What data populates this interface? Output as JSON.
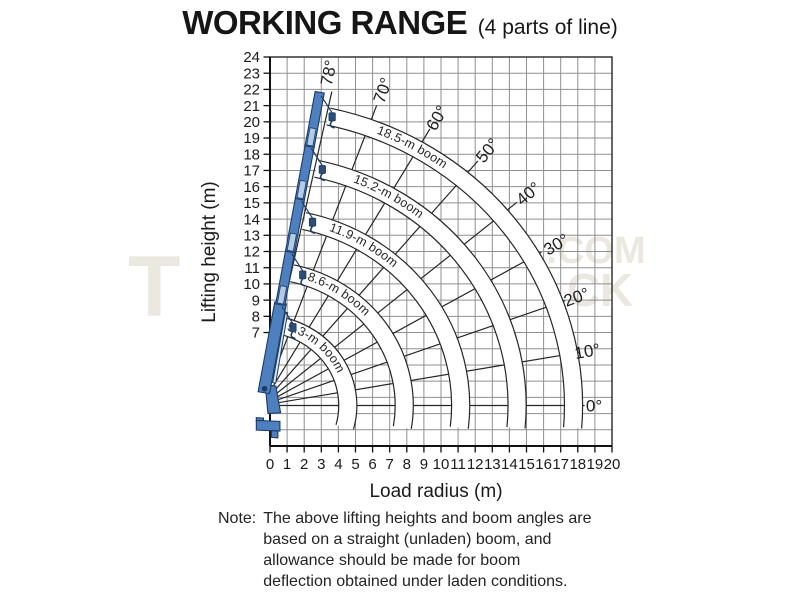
{
  "header": {
    "title": "WORKING RANGE",
    "suffix": "(4 parts of line)"
  },
  "chart_data": {
    "type": "line",
    "title": "WORKING RANGE (4 parts of line)",
    "xlabel": "Load radius (m)",
    "ylabel": "Lifting height (m)",
    "xlim": [
      0,
      20
    ],
    "ylim": [
      0,
      24
    ],
    "grid": true,
    "x_ticks": [
      0,
      1,
      2,
      3,
      4,
      5,
      6,
      7,
      8,
      9,
      10,
      11,
      12,
      13,
      14,
      15,
      16,
      17,
      18,
      19,
      20
    ],
    "y_ticks": [
      24,
      23,
      22,
      21,
      20,
      19,
      18,
      17,
      16,
      15,
      14,
      13,
      12,
      11,
      10,
      9,
      8,
      7
    ],
    "boom_pivot_m": {
      "x": -0.5,
      "y": 2.5
    },
    "boom_angles_deg": [
      0,
      10,
      20,
      30,
      40,
      50,
      60,
      70,
      78
    ],
    "angle_labels": [
      "0°",
      "10°",
      "20°",
      "30°",
      "40°",
      "50°",
      "60°",
      "70°",
      "78°"
    ],
    "boom_lengths_m": [
      5.3,
      8.6,
      11.9,
      15.2,
      18.5
    ],
    "boom_labels": [
      "5.3-m boom",
      "8.6-m boom",
      "11.9-m boom",
      "15.2-m boom",
      "18.5-m boom"
    ]
  },
  "note": {
    "label": "Note:",
    "lines": [
      "The above lifting heights and boom angles are",
      "based on a straight (unladen) boom, and",
      "allowance should be made for boom",
      "deflection obtained under laden conditions."
    ]
  },
  "watermark": {
    "fragments": [
      "T",
      ".COM",
      "CK"
    ]
  },
  "colors": {
    "boom_fill": "#4e80bf",
    "boom_light": "#b3cbe7",
    "boom_outline": "#1b3c66",
    "grid": "#8f8f8f",
    "line": "#262626",
    "text": "#1b1b1b",
    "watermark": "#d9d2c2",
    "background": "#ffffff"
  }
}
